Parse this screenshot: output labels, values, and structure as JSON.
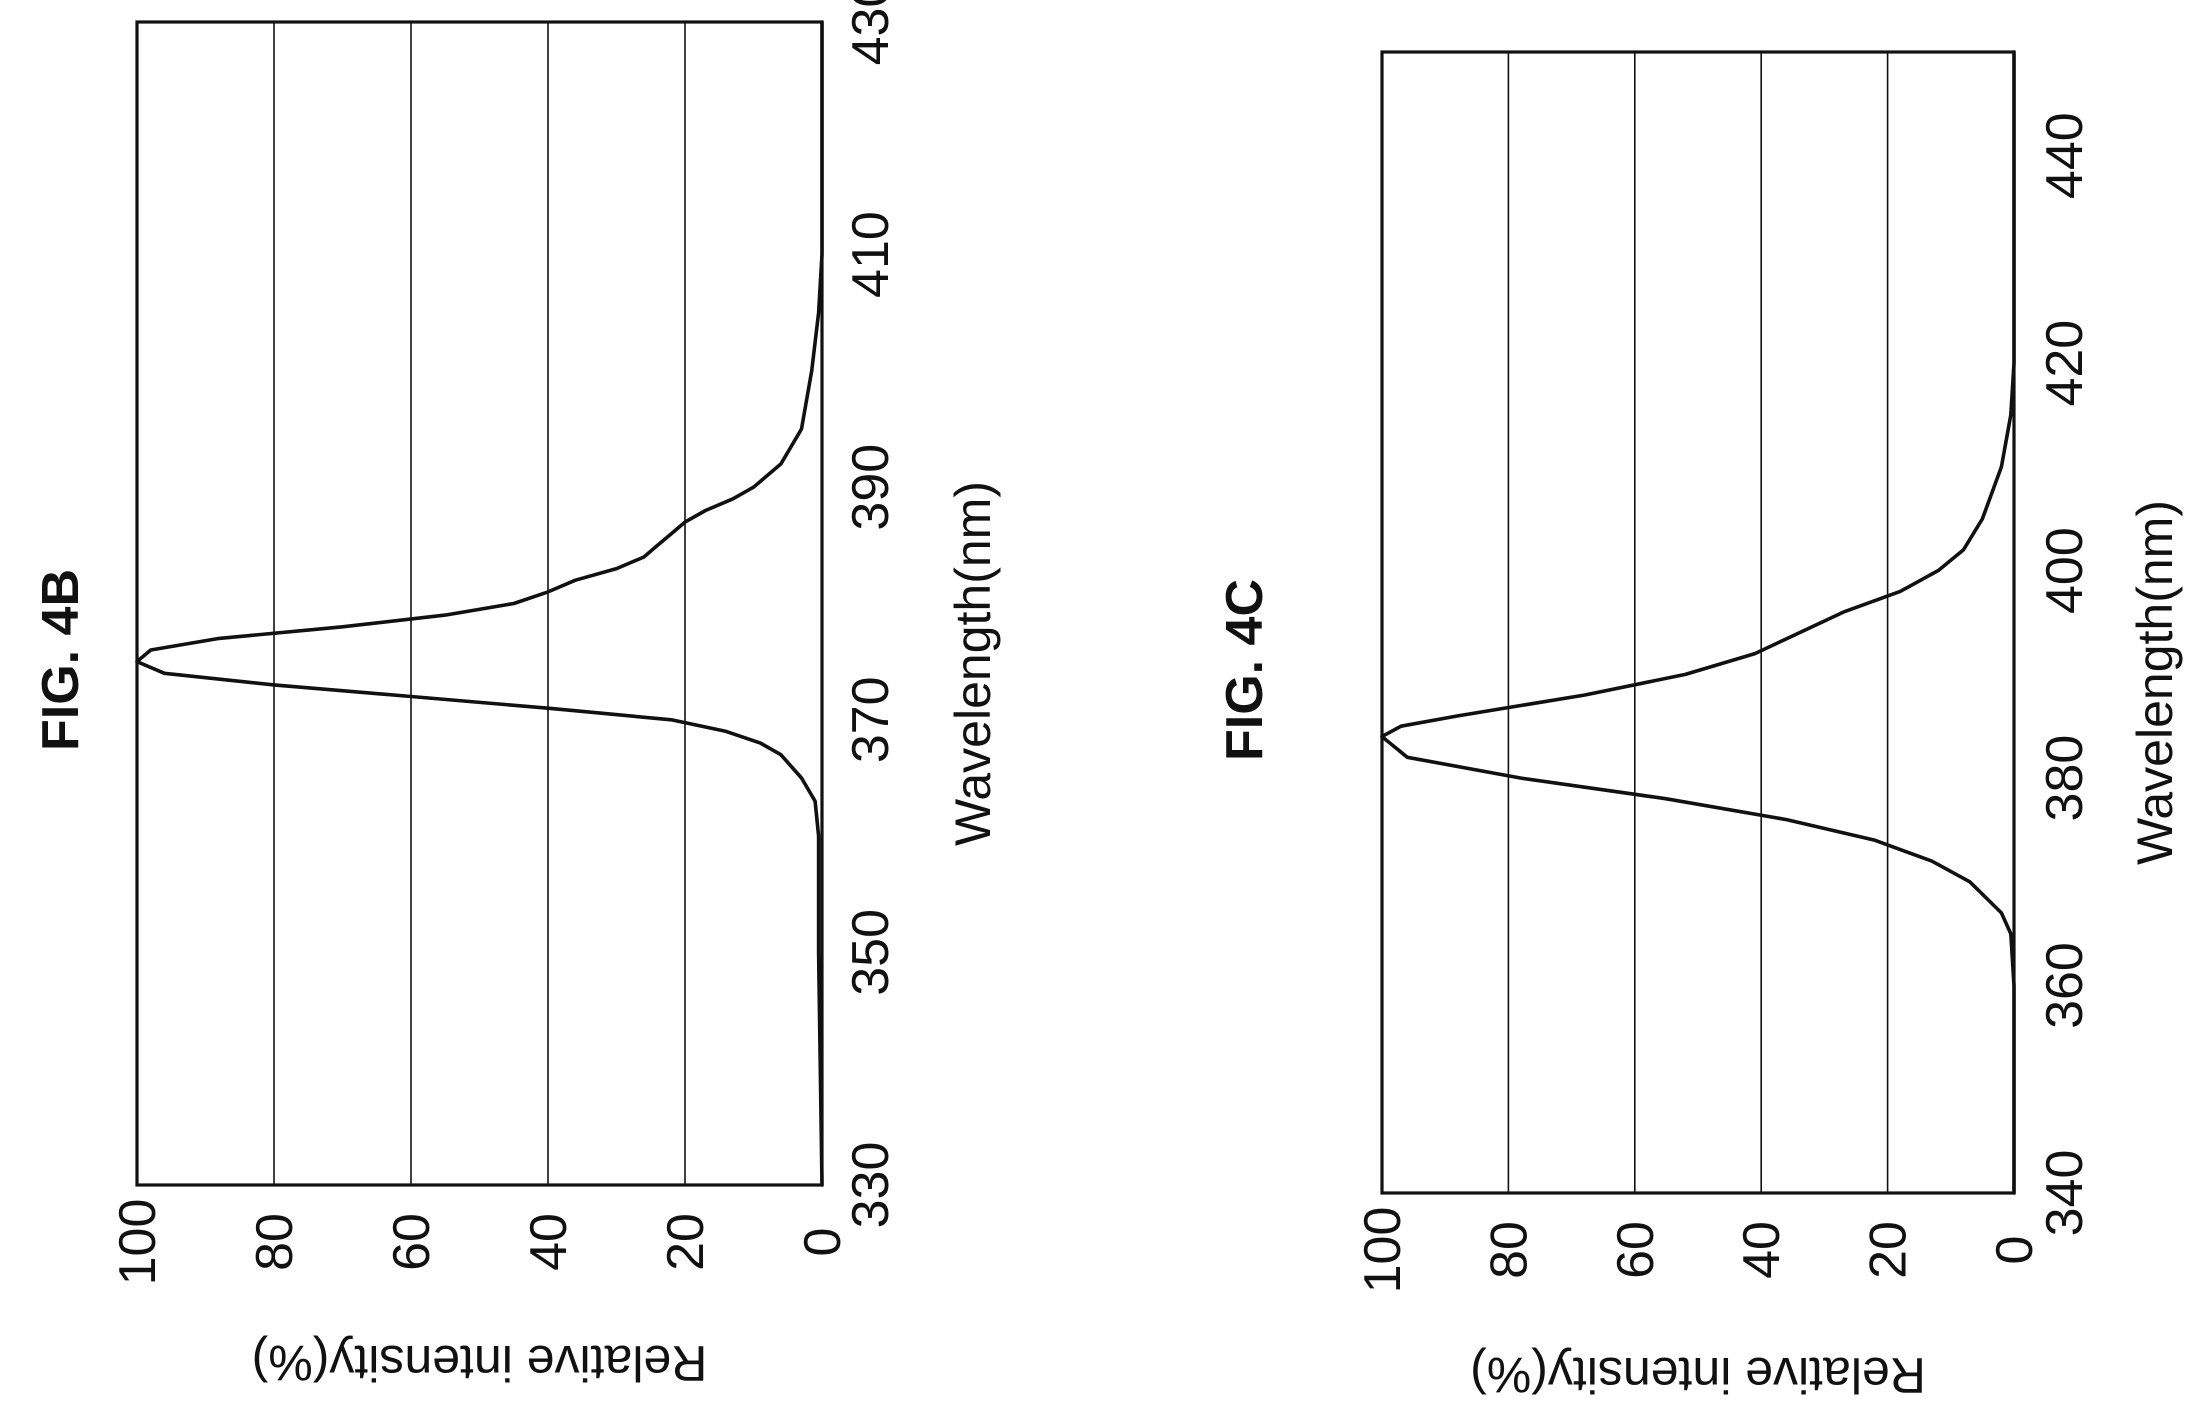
{
  "chart_data": [
    {
      "type": "line",
      "title": "FIG. 4B",
      "xlabel": "Wavelength(nm)",
      "ylabel": "Relative intensity(%)",
      "xlim": [
        330,
        430
      ],
      "ylim": [
        0,
        100
      ],
      "xticks": [
        "330",
        "350",
        "370",
        "390",
        "410",
        "430"
      ],
      "yticks": [
        "0",
        "20",
        "40",
        "60",
        "80",
        "100"
      ],
      "grid": true,
      "series": [
        {
          "x": [
            330,
            350,
            360,
            363,
            365,
            367,
            368,
            369,
            370,
            371,
            372,
            373,
            374,
            375,
            376,
            377,
            378,
            379,
            380,
            381,
            382,
            383,
            384,
            385,
            386,
            387,
            388,
            389,
            390,
            392,
            395,
            400,
            405,
            410,
            430
          ],
          "y": [
            0,
            0.5,
            0.5,
            1,
            3,
            6,
            9,
            14,
            22,
            40,
            60,
            80,
            96,
            100,
            98,
            88,
            70,
            55,
            45,
            40,
            36,
            30,
            26,
            24,
            22,
            20,
            17,
            13,
            10,
            6,
            3,
            1.5,
            0.5,
            0,
            0
          ]
        }
      ]
    },
    {
      "type": "line",
      "title": "FIG. 4C",
      "xlabel": "Wavelength(nm)",
      "ylabel": "Relative intensity(%)",
      "xlim": [
        340,
        450
      ],
      "ylim": [
        0,
        100
      ],
      "xticks": [
        "340",
        "360",
        "380",
        "400",
        "420",
        "440"
      ],
      "yticks": [
        "0",
        "20",
        "40",
        "60",
        "80",
        "100"
      ],
      "grid": true,
      "series": [
        {
          "x": [
            340,
            360,
            365,
            367,
            370,
            372,
            374,
            376,
            378,
            380,
            382,
            384,
            385,
            386,
            388,
            390,
            392,
            394,
            396,
            398,
            400,
            402,
            405,
            410,
            415,
            420,
            450
          ],
          "y": [
            0,
            0,
            0.5,
            2,
            7,
            13,
            22,
            36,
            55,
            78,
            96,
            100,
            97,
            88,
            68,
            52,
            41,
            34,
            27,
            18,
            12,
            8,
            5,
            2,
            0.5,
            0,
            0
          ]
        }
      ]
    }
  ]
}
